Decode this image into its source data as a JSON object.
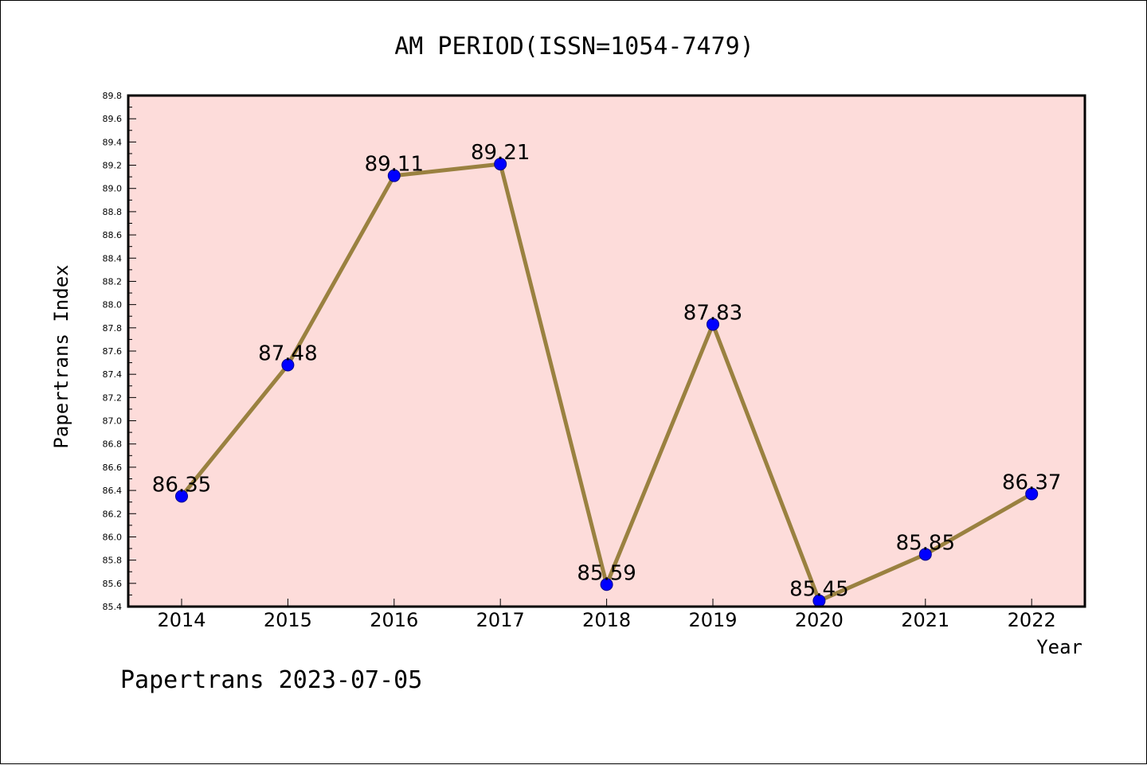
{
  "footer": "Papertrans 2023-07-05",
  "colors": {
    "plot_background": "#fddcda",
    "line": "#9a8140",
    "marker": "#0000ff",
    "marker_edge": "#00008b"
  },
  "chart_data": {
    "type": "line",
    "title": "AM PERIOD(ISSN=1054-7479)",
    "xlabel": "Year",
    "ylabel": "Papertrans Index",
    "categories": [
      "2014",
      "2015",
      "2016",
      "2017",
      "2018",
      "2019",
      "2020",
      "2021",
      "2022"
    ],
    "series": [
      {
        "values": [
          86.35,
          87.48,
          89.11,
          89.21,
          85.59,
          87.83,
          85.45,
          85.85,
          86.37
        ],
        "labels": [
          "86.35",
          "87.48",
          "89.11",
          "89.21",
          "85.59",
          "87.83",
          "85.45",
          "85.85",
          "86.37"
        ]
      }
    ],
    "ylim": [
      85.4,
      89.8
    ],
    "yticks": [
      "85.4",
      "85.6",
      "85.8",
      "86.0",
      "86.2",
      "86.4",
      "86.6",
      "86.8",
      "87.0",
      "87.2",
      "87.4",
      "87.6",
      "87.8",
      "88.0",
      "88.2",
      "88.4",
      "88.6",
      "88.8",
      "89.0",
      "89.2",
      "89.4",
      "89.6",
      "89.8"
    ],
    "grid": false,
    "legend": "none"
  }
}
